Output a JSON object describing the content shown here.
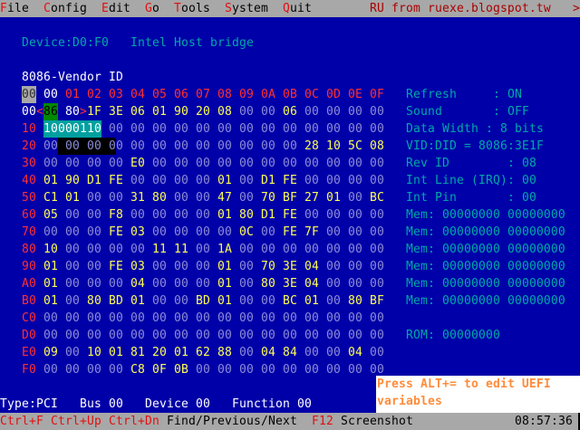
{
  "menu": {
    "items": [
      "File",
      "Config",
      "Edit",
      "Go",
      "Tools",
      "System",
      "Quit"
    ],
    "credit": "RU from ruexe.blogspot.tw",
    "more": ">"
  },
  "device": {
    "id": "Device:D0:F0",
    "name": "Intel Host bridge"
  },
  "field_hint": "8086-Vendor ID",
  "hex": {
    "corner": "00",
    "columns": [
      "00",
      "01",
      "02",
      "03",
      "04",
      "05",
      "06",
      "07",
      "08",
      "09",
      "0A",
      "0B",
      "0C",
      "0D",
      "0E",
      "0F"
    ],
    "rows": [
      {
        "label": "00",
        "bytes": [
          "86",
          "80",
          "1F",
          "3E",
          "06",
          "01",
          "90",
          "20",
          "08",
          "00",
          "00",
          "06",
          "00",
          "00",
          "00",
          "00"
        ]
      },
      {
        "label": "10",
        "bytes": [
          "00",
          "00",
          "00",
          "00",
          "00",
          "00",
          "00",
          "00",
          "00",
          "00",
          "00",
          "00",
          "00",
          "00",
          "00",
          "00"
        ]
      },
      {
        "label": "20",
        "bytes": [
          "00",
          "00",
          "00",
          "00",
          "00",
          "00",
          "00",
          "00",
          "00",
          "00",
          "00",
          "00",
          "28",
          "10",
          "5C",
          "08"
        ]
      },
      {
        "label": "30",
        "bytes": [
          "00",
          "00",
          "00",
          "00",
          "E0",
          "00",
          "00",
          "00",
          "00",
          "00",
          "00",
          "00",
          "00",
          "00",
          "00",
          "00"
        ]
      },
      {
        "label": "40",
        "bytes": [
          "01",
          "90",
          "D1",
          "FE",
          "00",
          "00",
          "00",
          "00",
          "01",
          "00",
          "D1",
          "FE",
          "00",
          "00",
          "00",
          "00"
        ]
      },
      {
        "label": "50",
        "bytes": [
          "C1",
          "01",
          "00",
          "00",
          "31",
          "80",
          "00",
          "00",
          "47",
          "00",
          "70",
          "BF",
          "27",
          "01",
          "00",
          "BC"
        ]
      },
      {
        "label": "60",
        "bytes": [
          "05",
          "00",
          "00",
          "F8",
          "00",
          "00",
          "00",
          "00",
          "01",
          "80",
          "D1",
          "FE",
          "00",
          "00",
          "00",
          "00"
        ]
      },
      {
        "label": "70",
        "bytes": [
          "00",
          "00",
          "00",
          "FE",
          "03",
          "00",
          "00",
          "00",
          "00",
          "0C",
          "00",
          "FE",
          "7F",
          "00",
          "00",
          "00"
        ]
      },
      {
        "label": "80",
        "bytes": [
          "10",
          "00",
          "00",
          "00",
          "00",
          "11",
          "11",
          "00",
          "1A",
          "00",
          "00",
          "00",
          "00",
          "00",
          "00",
          "00"
        ]
      },
      {
        "label": "90",
        "bytes": [
          "01",
          "00",
          "00",
          "FE",
          "03",
          "00",
          "00",
          "00",
          "01",
          "00",
          "70",
          "3E",
          "04",
          "00",
          "00",
          "00"
        ]
      },
      {
        "label": "A0",
        "bytes": [
          "01",
          "00",
          "00",
          "00",
          "04",
          "00",
          "00",
          "00",
          "01",
          "00",
          "80",
          "3E",
          "04",
          "00",
          "00",
          "00"
        ]
      },
      {
        "label": "B0",
        "bytes": [
          "01",
          "00",
          "80",
          "BD",
          "01",
          "00",
          "00",
          "BD",
          "01",
          "00",
          "00",
          "BC",
          "01",
          "00",
          "80",
          "BF"
        ]
      },
      {
        "label": "C0",
        "bytes": [
          "00",
          "00",
          "00",
          "00",
          "00",
          "00",
          "00",
          "00",
          "00",
          "00",
          "00",
          "00",
          "00",
          "00",
          "00",
          "00"
        ]
      },
      {
        "label": "D0",
        "bytes": [
          "00",
          "00",
          "00",
          "00",
          "00",
          "00",
          "00",
          "00",
          "00",
          "00",
          "00",
          "00",
          "00",
          "00",
          "00",
          "00"
        ]
      },
      {
        "label": "E0",
        "bytes": [
          "09",
          "00",
          "10",
          "01",
          "81",
          "20",
          "01",
          "62",
          "88",
          "00",
          "04",
          "84",
          "00",
          "00",
          "04",
          "00"
        ]
      },
      {
        "label": "F0",
        "bytes": [
          "00",
          "00",
          "00",
          "00",
          "C8",
          "0F",
          "0B",
          "00",
          "00",
          "00",
          "00",
          "00",
          "00",
          "00",
          "00",
          "00"
        ]
      }
    ],
    "binary_view": "10000110",
    "selection_open": "<",
    "selection_close": ">"
  },
  "info": {
    "lines": [
      "Refresh     : ON",
      "Sound       : OFF",
      "Data Width : 8 bits",
      "VID:DID = 8086:3E1F",
      "Rev ID        : 08",
      "Int Line (IRQ): 00",
      "Int Pin       : 00",
      "Mem: 00000000 00000000",
      "Mem: 00000000 00000000",
      "Mem: 00000000 00000000",
      "Mem: 00000000 00000000",
      "Mem: 00000000 00000000",
      "Mem: 00000000 00000000",
      "",
      "ROM: 00000000"
    ]
  },
  "popup": {
    "line1": "Press ALT+= to edit UEFI",
    "line2": "variables"
  },
  "location": {
    "type": "Type:PCI",
    "bus": "Bus 00",
    "device": "Device 00",
    "function": "Function 00"
  },
  "statusbar": {
    "keys1": "Ctrl+F",
    "keys2": "Ctrl+Up",
    "keys3": "Ctrl+Dn",
    "keys_desc": "Find/Previous/Next",
    "f12": "F12",
    "f12_desc": "Screenshot",
    "clock": "08:57:36"
  },
  "colors": {
    "background": "#0000a8",
    "bar": "#a8a8a8",
    "nonzero": "#ffff55",
    "zero": "#8c8cd8",
    "header": "#ff3030",
    "info": "#00a8a8",
    "cursor": "#008800",
    "binary_bg": "#00a0a0",
    "popup_text": "#ff8c3a"
  }
}
